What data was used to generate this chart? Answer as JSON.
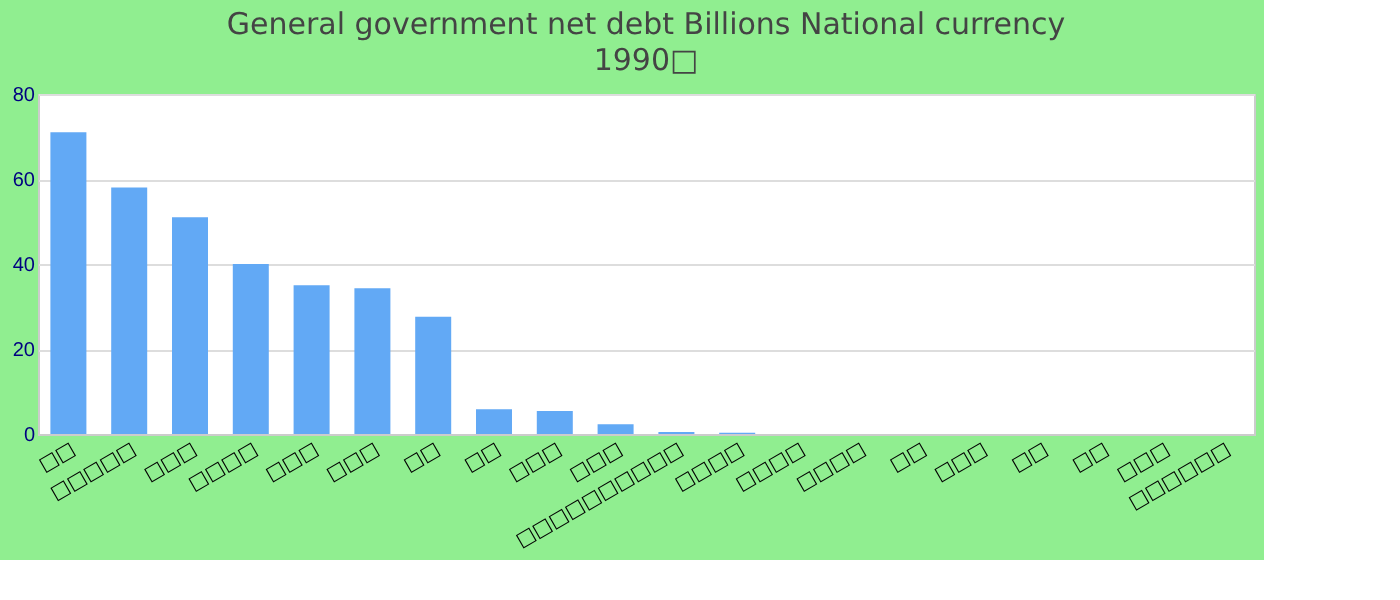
{
  "chart_data": {
    "type": "bar",
    "title": "General government net debt Billions National currency",
    "subtitle": "1990□",
    "categories": [
      "□□",
      "□□□□□",
      "□□□",
      "□□□□",
      "□□□",
      "□□□",
      "□□",
      "□□",
      "□□□",
      "□□□",
      "□□□□□□□□□□",
      "□□□□",
      "□□□□",
      "□□□□",
      "□□",
      "□□□",
      "□□",
      "□□",
      "□□□",
      "□□□□□□"
    ],
    "values": [
      71,
      58,
      51,
      40,
      35,
      34.3,
      27.6,
      5.8,
      5.4,
      2.3,
      0.5,
      0.3,
      0,
      0,
      0,
      0,
      0,
      0,
      0,
      0
    ],
    "color": "#62a9f5",
    "ylim": [
      0,
      80
    ],
    "yticks": [
      0,
      20,
      40,
      60,
      80
    ],
    "grid": "y"
  }
}
